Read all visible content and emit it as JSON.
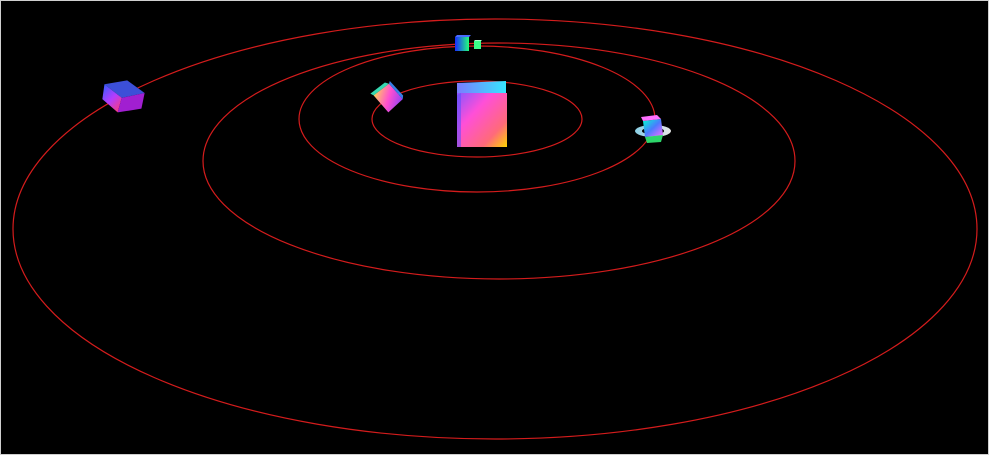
{
  "scene": {
    "background_color": "#000000",
    "orbit_color": "#d41c1c",
    "orbits": [
      {
        "name": "orbit-1"
      },
      {
        "name": "orbit-2"
      },
      {
        "name": "orbit-3"
      },
      {
        "name": "orbit-4"
      }
    ],
    "bodies": [
      {
        "name": "central-cube",
        "kind": "cube"
      },
      {
        "name": "inner-orbit-cube",
        "kind": "cube"
      },
      {
        "name": "top-orbit-cube",
        "kind": "cube"
      },
      {
        "name": "right-orbit-cube",
        "kind": "cube"
      },
      {
        "name": "outer-orbit-cube",
        "kind": "cube"
      }
    ]
  }
}
